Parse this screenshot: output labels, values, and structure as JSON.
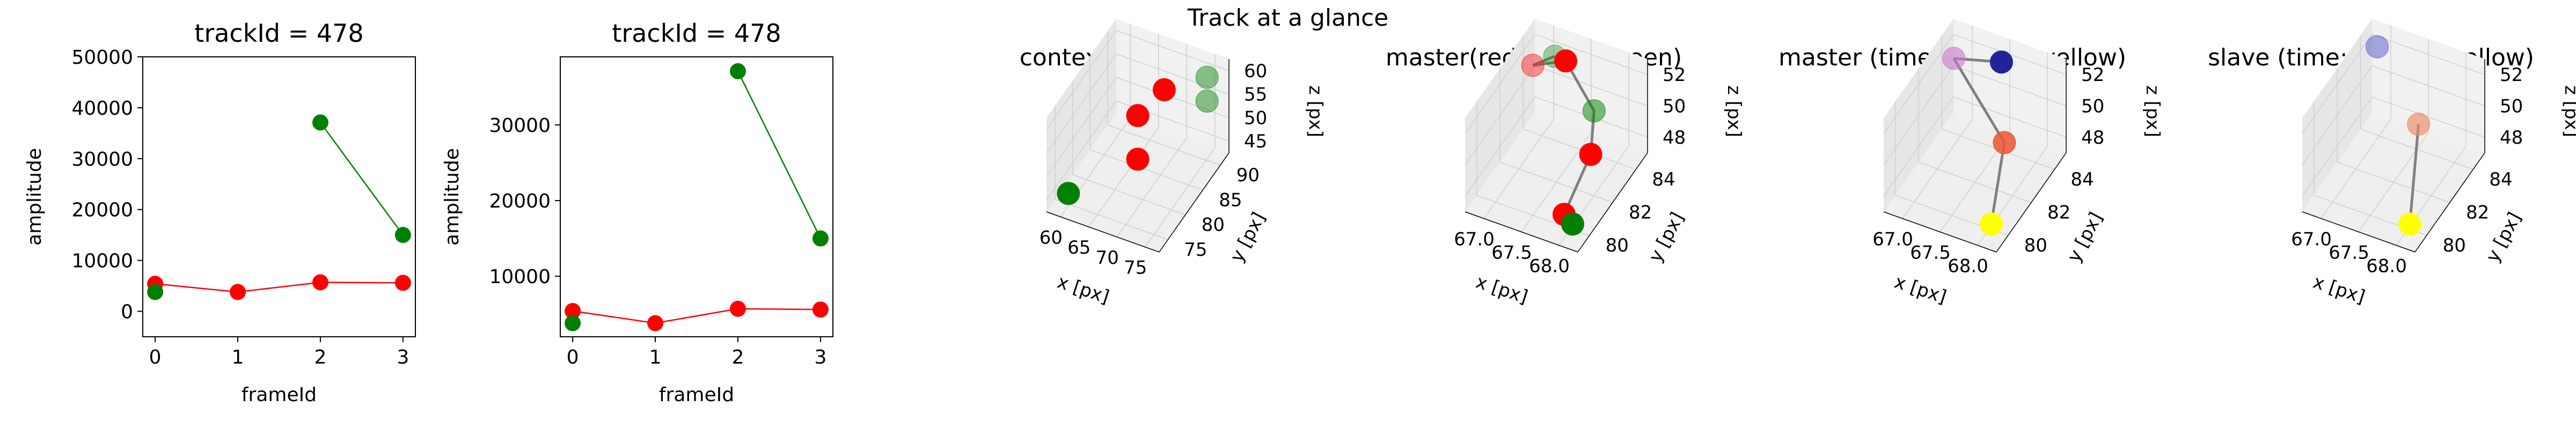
{
  "figure": {
    "suptitle": "Track at a glance",
    "colors": {
      "master": "#ff0000",
      "slave": "#008000",
      "axis": "#000000",
      "pane": "#ebebeb",
      "grid": "#d0d0d0",
      "link": "#808080",
      "time_start": "#000080",
      "time_end": "#ffff00"
    }
  },
  "chart_data": [
    {
      "type": "line",
      "title": "trackId = 478",
      "xlabel": "frameId",
      "ylabel": "amplitude",
      "xlim": [
        -0.15,
        3.15
      ],
      "ylim": [
        -5000,
        50000
      ],
      "xticks": [
        "0",
        "1",
        "2",
        "3"
      ],
      "yticks": [
        "0",
        "10000",
        "20000",
        "30000",
        "40000",
        "50000"
      ],
      "series": [
        {
          "color": "#ff0000",
          "x": [
            0,
            1,
            2,
            3
          ],
          "y": [
            5400,
            3800,
            5700,
            5600
          ]
        },
        {
          "color": "#008000",
          "x": [
            0
          ],
          "y": [
            3800
          ]
        },
        {
          "color": "#008000",
          "x": [
            2,
            3
          ],
          "y": [
            37100,
            15000
          ]
        }
      ]
    },
    {
      "type": "line",
      "title": "trackId = 478",
      "xlabel": "frameId",
      "ylabel": "amplitude",
      "xlim": [
        -0.15,
        3.15
      ],
      "ylim": [
        2000,
        39000
      ],
      "xticks": [
        "0",
        "1",
        "2",
        "3"
      ],
      "yticks": [
        "10000",
        "20000",
        "30000"
      ],
      "series": [
        {
          "color": "#ff0000",
          "x": [
            0,
            1,
            2,
            3
          ],
          "y": [
            5400,
            3800,
            5700,
            5600
          ]
        },
        {
          "color": "#008000",
          "x": [
            0
          ],
          "y": [
            3800
          ]
        },
        {
          "color": "#008000",
          "x": [
            2,
            3
          ],
          "y": [
            37100,
            15000
          ]
        }
      ]
    },
    {
      "type": "scatter",
      "title": "context +- 10px",
      "xlabel": "x [px]",
      "ylabel": "y [px]",
      "zlabel": "z [px]",
      "xticks": [
        "60",
        "65",
        "70",
        "75"
      ],
      "yticks": [
        "75",
        "80",
        "85",
        "90"
      ],
      "zticks": [
        "45",
        "50",
        "55",
        "60"
      ],
      "points": [
        {
          "color": "#008000",
          "x": 68.0,
          "y": 80.5,
          "z": 54.5,
          "alpha": 0.45
        },
        {
          "color": "#008000",
          "x": 68.0,
          "y": 80.5,
          "z": 51.5,
          "alpha": 0.45
        },
        {
          "color": "#ff0000",
          "x": 67.5,
          "y": 80.0,
          "z": 52.5,
          "alpha": 1.0
        },
        {
          "color": "#ff0000",
          "x": 67.5,
          "y": 80.5,
          "z": 51.0,
          "alpha": 1.0
        },
        {
          "color": "#ff0000",
          "x": 67.5,
          "y": 80.0,
          "z": 47.0,
          "alpha": 1.0
        },
        {
          "color": "#008000",
          "x": 67.0,
          "y": 79.5,
          "z": 45.5,
          "alpha": 1.0
        }
      ]
    },
    {
      "type": "scatter",
      "title": "master(red) slave(green)",
      "xlabel": "x [px]",
      "ylabel": "y [px]",
      "zlabel": "z [px]",
      "xticks": [
        "67.0",
        "67.5",
        "68.0"
      ],
      "yticks": [
        "80",
        "82",
        "84"
      ],
      "zticks": [
        "48",
        "50",
        "52"
      ],
      "links": [
        [
          0,
          1
        ],
        [
          1,
          2
        ],
        [
          2,
          3
        ],
        [
          3,
          4
        ],
        [
          4,
          5
        ]
      ],
      "points": [
        {
          "color": "#008000",
          "x": 67.2,
          "y": 84.2,
          "z": 53.6,
          "alpha": 0.35
        },
        {
          "color": "#ff0000",
          "x": 67.0,
          "y": 83.8,
          "z": 52.6,
          "alpha": 0.4
        },
        {
          "color": "#ff0000",
          "x": 67.3,
          "y": 84.4,
          "z": 53.0,
          "alpha": 1.0
        },
        {
          "color": "#008000",
          "x": 67.8,
          "y": 83.2,
          "z": 51.3,
          "alpha": 0.5
        },
        {
          "color": "#ff0000",
          "x": 68.0,
          "y": 81.5,
          "z": 50.3,
          "alpha": 1.0
        },
        {
          "color": "#ff0000",
          "x": 67.9,
          "y": 80.0,
          "z": 45.8,
          "alpha": 1.0
        },
        {
          "color": "#008000",
          "x": 68.0,
          "y": 80.0,
          "z": 45.0,
          "alpha": 1.0
        }
      ]
    },
    {
      "type": "scatter",
      "title": "master (time: blue -> yellow)",
      "xlabel": "x [px]",
      "ylabel": "y [px]",
      "zlabel": "z [px]",
      "xticks": [
        "67.0",
        "67.5",
        "68.0"
      ],
      "yticks": [
        "80",
        "82",
        "84"
      ],
      "zticks": [
        "48",
        "50",
        "52"
      ],
      "links": [
        [
          0,
          1
        ],
        [
          1,
          2
        ],
        [
          2,
          3
        ]
      ],
      "points": [
        {
          "color": "#222299",
          "x": 67.5,
          "y": 84.6,
          "z": 53.7,
          "alpha": 1.0
        },
        {
          "color": "#cc77cc",
          "x": 67.0,
          "y": 84.2,
          "z": 53.2,
          "alpha": 0.6
        },
        {
          "color": "#ee5533",
          "x": 67.9,
          "y": 82.0,
          "z": 51.2,
          "alpha": 0.85
        },
        {
          "color": "#ffff00",
          "x": 68.0,
          "y": 80.2,
          "z": 46.2,
          "alpha": 1.0
        }
      ]
    },
    {
      "type": "scatter",
      "title": "slave (time: blue -> yellow)",
      "xlabel": "x [px]",
      "ylabel": "y [px]",
      "zlabel": "z [px]",
      "xticks": [
        "67.0",
        "67.5",
        "68.0"
      ],
      "yticks": [
        "80",
        "82",
        "84"
      ],
      "zticks": [
        "48",
        "50",
        "52"
      ],
      "links": [
        [
          1,
          2
        ]
      ],
      "points": [
        {
          "color": "#5555cc",
          "x": 67.3,
          "y": 84.8,
          "z": 55.0,
          "alpha": 0.5
        },
        {
          "color": "#ee8866",
          "x": 67.8,
          "y": 83.0,
          "z": 51.4,
          "alpha": 0.65
        },
        {
          "color": "#ffff00",
          "x": 68.0,
          "y": 80.0,
          "z": 45.6,
          "alpha": 1.0
        }
      ]
    }
  ]
}
